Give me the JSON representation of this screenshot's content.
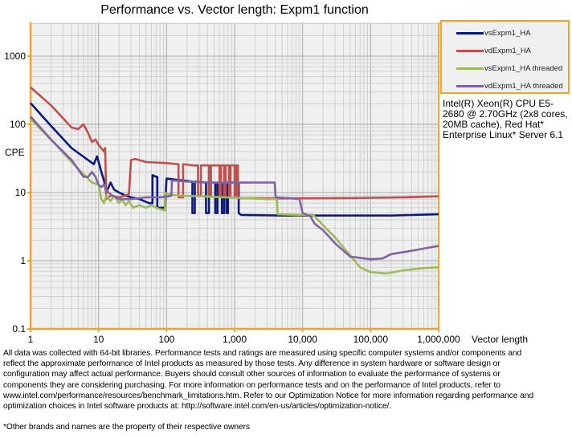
{
  "chart_data": {
    "type": "line",
    "title": "Performance vs. Vector length: Expm1 function",
    "xlabel": "Vector length",
    "ylabel": "CPE",
    "xscale": "log",
    "yscale": "log",
    "xlim": [
      1,
      1000000
    ],
    "ylim": [
      0.1,
      3000
    ],
    "grid": true,
    "legend_position": "top-right",
    "x_ticks": [
      {
        "v": 1,
        "label": "1"
      },
      {
        "v": 10,
        "label": "10"
      },
      {
        "v": 100,
        "label": "100"
      },
      {
        "v": 1000,
        "label": "1,000"
      },
      {
        "v": 10000,
        "label": "10,000"
      },
      {
        "v": 100000,
        "label": "100,000"
      },
      {
        "v": 1000000,
        "label": "1,000,000"
      }
    ],
    "y_ticks": [
      {
        "v": 1000,
        "label": "1000"
      },
      {
        "v": 100,
        "label": "100"
      },
      {
        "v": 10,
        "label": "10"
      },
      {
        "v": 1,
        "label": "1"
      },
      {
        "v": 0.1,
        "label": "0.1"
      }
    ],
    "series": [
      {
        "name": "vsExpm1_HA",
        "color": "#0c1a80",
        "points": [
          [
            1,
            205
          ],
          [
            2,
            95
          ],
          [
            4,
            45
          ],
          [
            8.5,
            26
          ],
          [
            9.5,
            34
          ],
          [
            11,
            20
          ],
          [
            12,
            15
          ],
          [
            13,
            10
          ],
          [
            15,
            14
          ],
          [
            17,
            11
          ],
          [
            20,
            10
          ],
          [
            25,
            9
          ],
          [
            30,
            8.5
          ],
          [
            40,
            8
          ],
          [
            55,
            7
          ],
          [
            62,
            7
          ],
          [
            62,
            18
          ],
          [
            70,
            17
          ],
          [
            73,
            17
          ],
          [
            73,
            6
          ],
          [
            85,
            6
          ],
          [
            95,
            6
          ],
          [
            100,
            16
          ],
          [
            130,
            15.5
          ],
          [
            180,
            15
          ],
          [
            230,
            14.5
          ],
          [
            240,
            14.5
          ],
          [
            240,
            5
          ],
          [
            260,
            5
          ],
          [
            260,
            14.5
          ],
          [
            380,
            14
          ],
          [
            380,
            5
          ],
          [
            420,
            5
          ],
          [
            420,
            14
          ],
          [
            520,
            14
          ],
          [
            520,
            5
          ],
          [
            560,
            5
          ],
          [
            560,
            14
          ],
          [
            650,
            14
          ],
          [
            650,
            5
          ],
          [
            700,
            5
          ],
          [
            700,
            14
          ],
          [
            760,
            14
          ],
          [
            760,
            5
          ],
          [
            800,
            5
          ],
          [
            800,
            14
          ],
          [
            1150,
            14
          ],
          [
            1150,
            5
          ],
          [
            1250,
            4.7
          ],
          [
            5000,
            4.6
          ],
          [
            50000,
            4.6
          ],
          [
            200000,
            4.6
          ],
          [
            1000000,
            4.8
          ]
        ]
      },
      {
        "name": "vdExpm1_HA",
        "color": "#c0504d",
        "points": [
          [
            1,
            350
          ],
          [
            2,
            190
          ],
          [
            4,
            90
          ],
          [
            5,
            85
          ],
          [
            6,
            100
          ],
          [
            7,
            75
          ],
          [
            8,
            55
          ],
          [
            9,
            60
          ],
          [
            10,
            50
          ],
          [
            12,
            40
          ],
          [
            12.5,
            45
          ],
          [
            13,
            8
          ],
          [
            15,
            9
          ],
          [
            20,
            8.5
          ],
          [
            25,
            9
          ],
          [
            28,
            9.5
          ],
          [
            30,
            30
          ],
          [
            35,
            31
          ],
          [
            50,
            28
          ],
          [
            100,
            27
          ],
          [
            150,
            26
          ],
          [
            150,
            8.5
          ],
          [
            175,
            8.5
          ],
          [
            175,
            26
          ],
          [
            250,
            25
          ],
          [
            290,
            25
          ],
          [
            290,
            9
          ],
          [
            320,
            9
          ],
          [
            320,
            25
          ],
          [
            420,
            25
          ],
          [
            420,
            9
          ],
          [
            450,
            9
          ],
          [
            450,
            25
          ],
          [
            600,
            25
          ],
          [
            600,
            9
          ],
          [
            630,
            9
          ],
          [
            630,
            25
          ],
          [
            700,
            25
          ],
          [
            700,
            9
          ],
          [
            740,
            9
          ],
          [
            740,
            25
          ],
          [
            830,
            25
          ],
          [
            830,
            9
          ],
          [
            870,
            9
          ],
          [
            870,
            25
          ],
          [
            1000,
            25
          ],
          [
            1000,
            9
          ],
          [
            1050,
            9
          ],
          [
            1050,
            25
          ],
          [
            1120,
            25
          ],
          [
            1120,
            8.3
          ],
          [
            5000,
            8.2
          ],
          [
            50000,
            8.3
          ],
          [
            300000,
            8.5
          ],
          [
            1000000,
            8.8
          ]
        ]
      },
      {
        "name": "vsExpm1_HA threaded",
        "color": "#9bbb59",
        "points": [
          [
            1,
            120
          ],
          [
            2,
            60
          ],
          [
            4,
            28
          ],
          [
            8,
            14
          ],
          [
            10,
            13
          ],
          [
            11,
            8
          ],
          [
            12,
            7
          ],
          [
            13,
            9
          ],
          [
            15,
            7.5
          ],
          [
            17,
            9
          ],
          [
            20,
            7
          ],
          [
            22,
            8
          ],
          [
            25,
            6.5
          ],
          [
            28,
            7.5
          ],
          [
            32,
            6
          ],
          [
            40,
            6.5
          ],
          [
            50,
            6
          ],
          [
            60,
            6.5
          ],
          [
            70,
            6
          ],
          [
            90,
            5.5
          ],
          [
            95,
            5.5
          ],
          [
            95,
            10
          ],
          [
            100,
            9.5
          ],
          [
            150,
            9
          ],
          [
            300,
            8.8
          ],
          [
            1000,
            8.4
          ],
          [
            3000,
            8
          ],
          [
            4200,
            8
          ],
          [
            4300,
            4.8
          ],
          [
            8000,
            4.7
          ],
          [
            14000,
            4.7
          ],
          [
            15000,
            4.5
          ],
          [
            20000,
            3.3
          ],
          [
            30000,
            2.2
          ],
          [
            50000,
            1.2
          ],
          [
            70000,
            0.8
          ],
          [
            100000,
            0.68
          ],
          [
            170000,
            0.65
          ],
          [
            300000,
            0.72
          ],
          [
            600000,
            0.78
          ],
          [
            1000000,
            0.8
          ]
        ]
      },
      {
        "name": "vdExpm1_HA threaded",
        "color": "#8064a2",
        "points": [
          [
            1,
            130
          ],
          [
            2,
            60
          ],
          [
            4,
            30
          ],
          [
            6,
            17
          ],
          [
            7,
            17
          ],
          [
            8,
            20
          ],
          [
            9,
            17
          ],
          [
            10,
            13
          ],
          [
            11,
            12
          ],
          [
            12,
            13
          ],
          [
            14,
            10
          ],
          [
            16,
            9
          ],
          [
            20,
            8
          ],
          [
            30,
            8
          ],
          [
            50,
            8.5
          ],
          [
            80,
            8.5
          ],
          [
            110,
            8.8
          ],
          [
            118,
            9
          ],
          [
            120,
            15
          ],
          [
            200,
            14.5
          ],
          [
            500,
            14
          ],
          [
            1000,
            14
          ],
          [
            2000,
            14
          ],
          [
            3900,
            14
          ],
          [
            4000,
            8.5
          ],
          [
            7000,
            8.2
          ],
          [
            9000,
            8
          ],
          [
            10000,
            5
          ],
          [
            13000,
            4.5
          ],
          [
            15000,
            3.5
          ],
          [
            20000,
            2.8
          ],
          [
            30000,
            1.8
          ],
          [
            50000,
            1.15
          ],
          [
            100000,
            1.05
          ],
          [
            150000,
            1.08
          ],
          [
            200000,
            1.25
          ],
          [
            400000,
            1.4
          ],
          [
            1000000,
            1.65
          ]
        ]
      }
    ]
  },
  "legend": {
    "items": [
      "vsExpm1_HA",
      "vdExpm1_HA",
      "vsExpm1_HA threaded",
      "vdExpm1_HA threaded"
    ]
  },
  "system_info": "Intel(R) Xeon(R) CPU E5-2680 @ 2.70GHz (2x8 cores, 20MB cache), Red Hat* Enterprise Linux* Server 6.1",
  "footer": {
    "lines": [
      "All data was collected with 64-bit libraries. Performance tests and ratings are measured  using specific computer systems and/or components  and",
      "reflect the approximate  performance of Intel products as measured by those tests.  Any difference in system hardware or software design or",
      "configuration may affect actual performance. Buyers should  consult other sources of information to evaluate  the performance of systems  or",
      "components they are considering purchasing.  For more information on performance tests and on the performance of Intel products, refer to",
      "www.intel.com/performance/resources/benchmark_limitations.htm.  Refer to our Optimization  Notice for more information regarding performance and",
      "optimization  choices in Intel software products at: http://software.intel.com/en-us/articles/optimization-notice/."
    ],
    "note": "*Other brands and names are the property of their respective owners"
  }
}
